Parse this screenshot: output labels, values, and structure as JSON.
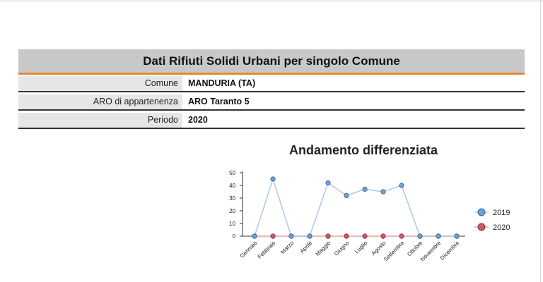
{
  "header": {
    "title": "Dati Rifiuti Solidi Urbani per singolo Comune"
  },
  "info": [
    {
      "label": "Comune",
      "value": "MANDURIA (TA)"
    },
    {
      "label": "ARO di appartenenza",
      "value": "ARO Taranto 5"
    },
    {
      "label": "Periodo",
      "value": "2020"
    }
  ],
  "colors": {
    "accent": "#e8892e",
    "series_2019": "#6f9fd8",
    "series_2020": "#d05a64"
  },
  "chart_data": {
    "type": "line",
    "title": "Andamento differenziata",
    "categories": [
      "Gennaio",
      "Febbraio",
      "Marzo",
      "Aprile",
      "Maggio",
      "Giugno",
      "Luglio",
      "Agosto",
      "Settembre",
      "Ottobre",
      "Novembre",
      "Dicembre"
    ],
    "series": [
      {
        "name": "2019",
        "values": [
          0,
          45,
          0,
          0,
          42,
          32,
          37,
          35,
          40,
          0,
          0,
          0
        ]
      },
      {
        "name": "2020",
        "values": [
          0,
          0,
          0,
          0,
          0,
          0,
          0,
          0,
          0,
          0,
          0,
          0
        ]
      }
    ],
    "ylim": [
      0,
      50
    ],
    "yticks": [
      0,
      10,
      20,
      30,
      40,
      50
    ],
    "legend": "right"
  }
}
